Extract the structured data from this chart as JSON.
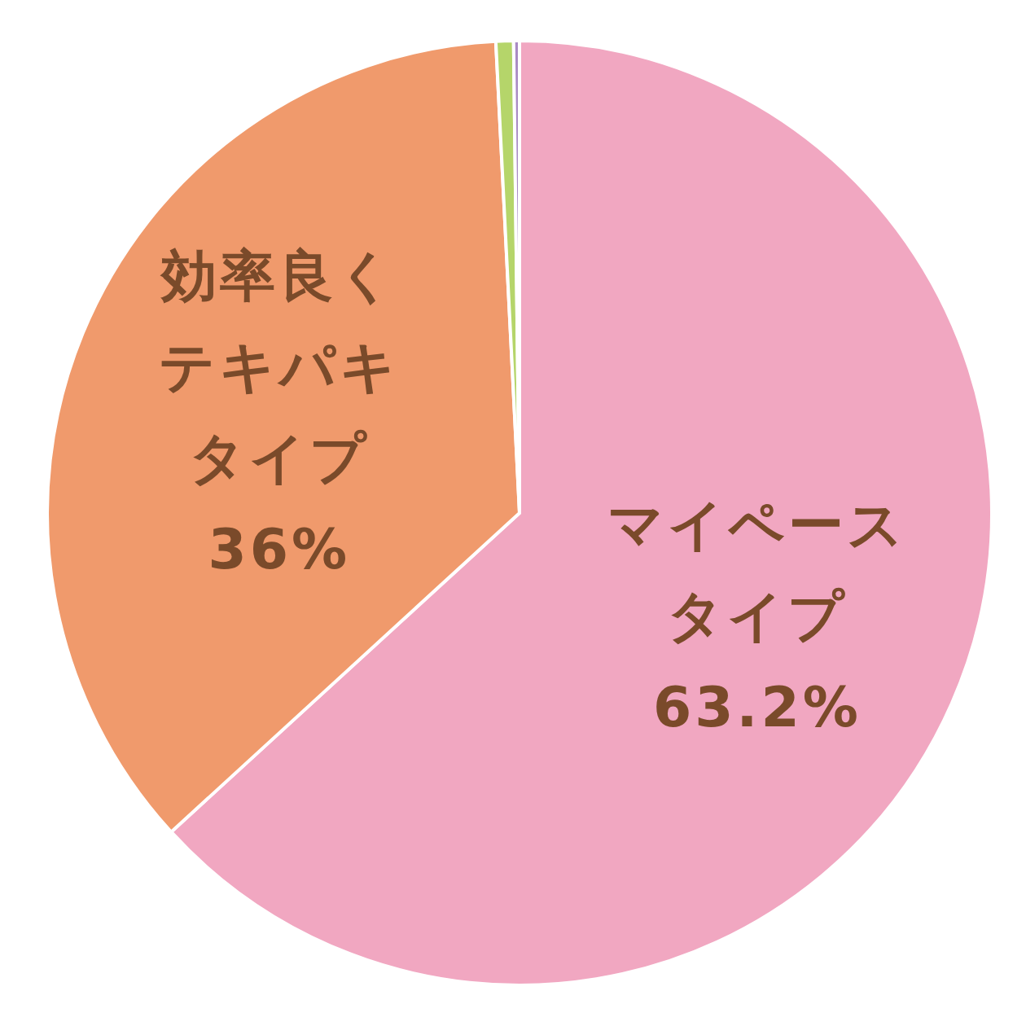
{
  "chart_data": {
    "type": "pie",
    "categories": [
      "マイペースタイプ",
      "効率良くテキパキタイプ",
      null,
      null
    ],
    "values": [
      63.2,
      36,
      0.6,
      0.2
    ],
    "colors": [
      "#f1a7c1",
      "#f09a6c",
      "#b5d56a",
      "#a98bc4"
    ],
    "value_labels": [
      "63.2%",
      "36%",
      null,
      null
    ],
    "legend": false
  }
}
